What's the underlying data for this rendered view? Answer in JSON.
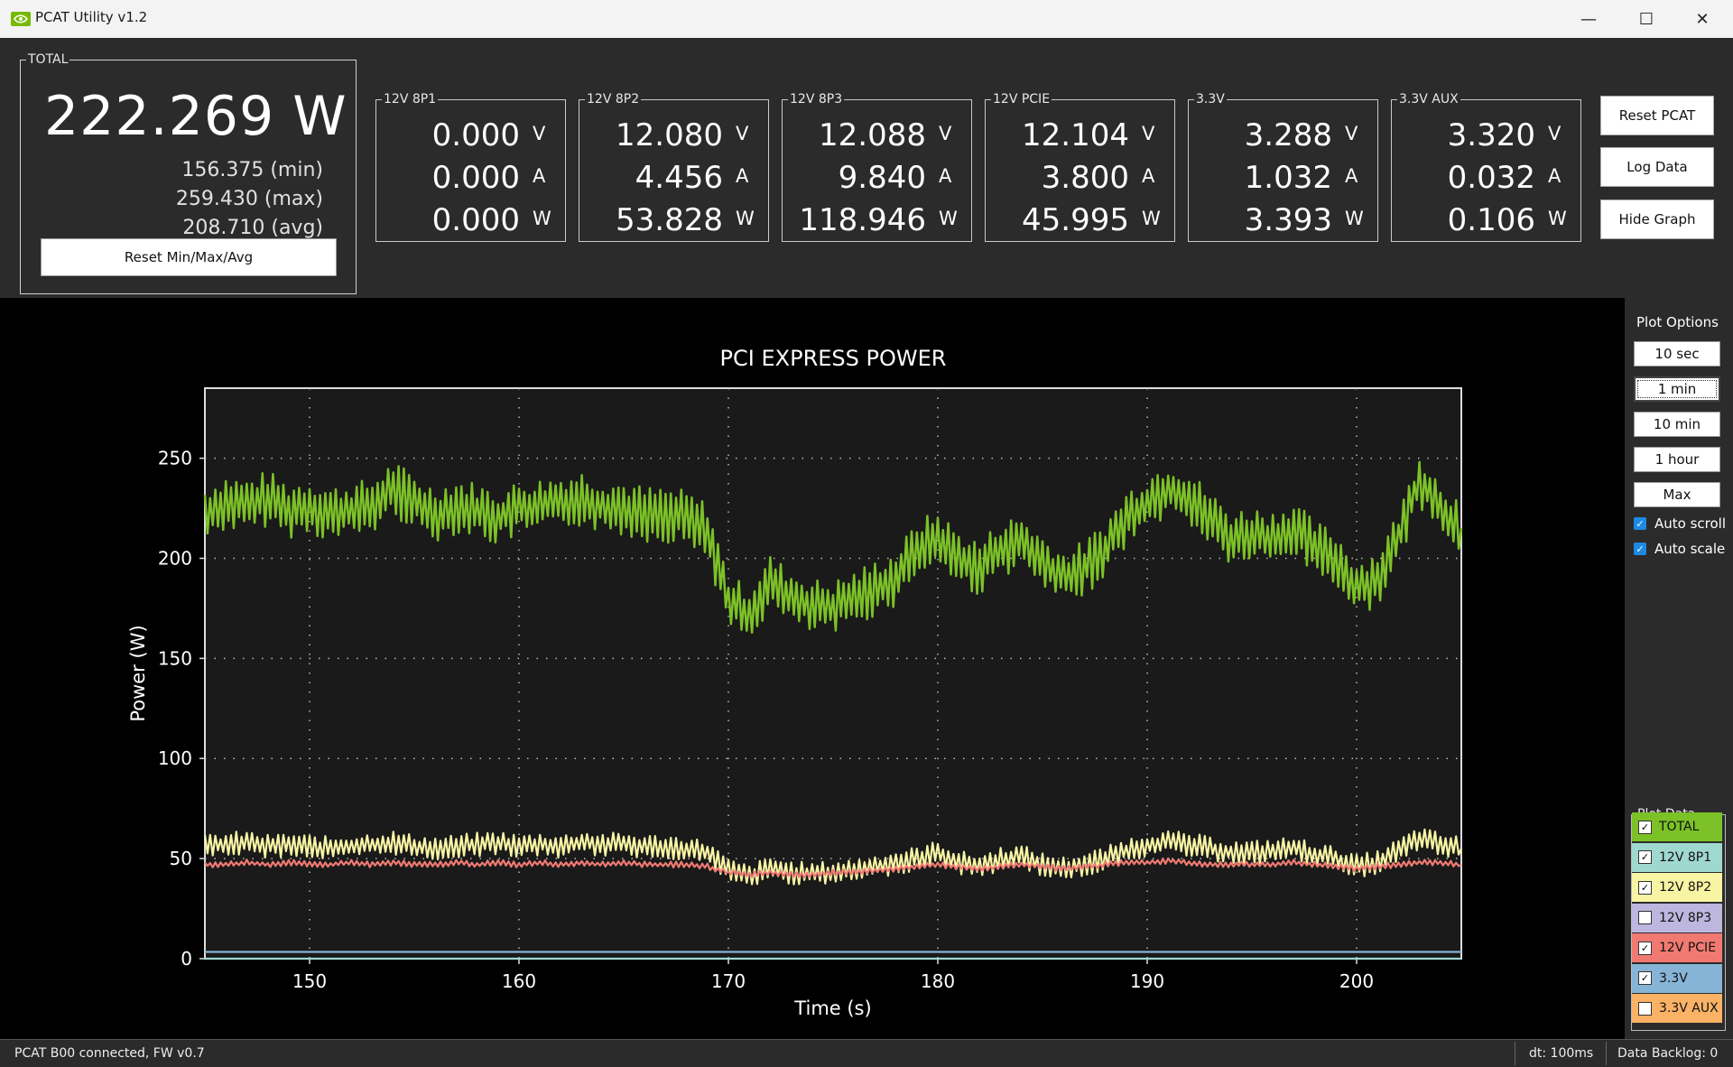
{
  "window": {
    "title": "PCAT Utility v1.2",
    "minimize": "—",
    "maximize": "☐",
    "close": "✕"
  },
  "total": {
    "legend": "TOTAL",
    "value": "222.269 W",
    "min": "156.375 (min)",
    "max": "259.430 (max)",
    "avg": "208.710 (avg)",
    "reset_label": "Reset Min/Max/Avg"
  },
  "rails": [
    {
      "name": "12V 8P1",
      "v": "0.000",
      "a": "0.000",
      "w": "0.000"
    },
    {
      "name": "12V 8P2",
      "v": "12.080",
      "a": "4.456",
      "w": "53.828"
    },
    {
      "name": "12V 8P3",
      "v": "12.088",
      "a": "9.840",
      "w": "118.946"
    },
    {
      "name": "12V PCIE",
      "v": "12.104",
      "a": "3.800",
      "w": "45.995"
    },
    {
      "name": "3.3V",
      "v": "3.288",
      "a": "1.032",
      "w": "3.393"
    },
    {
      "name": "3.3V AUX",
      "v": "3.320",
      "a": "0.032",
      "w": "0.106"
    }
  ],
  "units": {
    "v": "V",
    "a": "A",
    "w": "W"
  },
  "buttons": {
    "reset_pcat": "Reset PCAT",
    "log_data": "Log Data",
    "hide_graph": "Hide Graph"
  },
  "plot_options": {
    "title": "Plot Options",
    "ranges": [
      "10 sec",
      "1 min",
      "10 min",
      "1 hour",
      "Max"
    ],
    "selected": "1 min",
    "auto_scroll": "Auto scroll",
    "auto_scale": "Auto scale"
  },
  "plot_data": {
    "title": "Plot Data",
    "items": [
      {
        "label": "TOTAL",
        "checked": true,
        "color": "#7cc127"
      },
      {
        "label": "12V 8P1",
        "checked": true,
        "color": "#9fd8cf"
      },
      {
        "label": "12V 8P2",
        "checked": true,
        "color": "#f7f4a4"
      },
      {
        "label": "12V 8P3",
        "checked": false,
        "color": "#bdb6de"
      },
      {
        "label": "12V PCIE",
        "checked": true,
        "color": "#f07a72"
      },
      {
        "label": "3.3V",
        "checked": true,
        "color": "#86b4d6"
      },
      {
        "label": "3.3V AUX",
        "checked": false,
        "color": "#f9b266"
      }
    ]
  },
  "chart_data": {
    "type": "line",
    "title": "PCI EXPRESS POWER",
    "xlabel": "Time (s)",
    "ylabel": "Power (W)",
    "xlim": [
      145,
      205
    ],
    "ylim": [
      0,
      285
    ],
    "xticks": [
      150,
      160,
      170,
      180,
      190,
      200
    ],
    "yticks": [
      0,
      50,
      100,
      150,
      200,
      250
    ],
    "grid": true,
    "series": [
      {
        "name": "TOTAL",
        "color": "#7cc127",
        "x": [
          145,
          146,
          147,
          148,
          149,
          150,
          151,
          152,
          153,
          154,
          155,
          156,
          157,
          158,
          159,
          160,
          161,
          162,
          163,
          164,
          165,
          166,
          167,
          168,
          169,
          170,
          171,
          172,
          173,
          174,
          175,
          176,
          177,
          178,
          179,
          180,
          181,
          182,
          183,
          184,
          185,
          186,
          187,
          188,
          189,
          190,
          191,
          192,
          193,
          194,
          195,
          196,
          197,
          198,
          199,
          200,
          201,
          202,
          203,
          204,
          205
        ],
        "y": [
          222,
          228,
          226,
          230,
          224,
          226,
          222,
          224,
          226,
          235,
          228,
          222,
          226,
          224,
          220,
          225,
          226,
          228,
          230,
          226,
          225,
          222,
          222,
          220,
          214,
          178,
          172,
          188,
          180,
          176,
          175,
          180,
          185,
          190,
          205,
          210,
          200,
          195,
          205,
          208,
          198,
          190,
          195,
          205,
          220,
          228,
          235,
          230,
          220,
          210,
          212,
          210,
          215,
          205,
          200,
          185,
          190,
          210,
          240,
          225,
          215
        ]
      },
      {
        "name": "12V 8P2",
        "color": "#f7f4a4",
        "x": [
          145,
          146,
          147,
          148,
          149,
          150,
          151,
          152,
          153,
          154,
          155,
          156,
          157,
          158,
          159,
          160,
          161,
          162,
          163,
          164,
          165,
          166,
          167,
          168,
          169,
          170,
          171,
          172,
          173,
          174,
          175,
          176,
          177,
          178,
          179,
          180,
          181,
          182,
          183,
          184,
          185,
          186,
          187,
          188,
          189,
          190,
          191,
          192,
          193,
          194,
          195,
          196,
          197,
          198,
          199,
          200,
          201,
          202,
          203,
          204,
          205
        ],
        "y": [
          56,
          57,
          58,
          56,
          57,
          56,
          55,
          56,
          57,
          58,
          56,
          55,
          56,
          57,
          58,
          56,
          57,
          56,
          58,
          57,
          57,
          56,
          56,
          55,
          53,
          44,
          41,
          45,
          43,
          42,
          43,
          44,
          46,
          48,
          50,
          53,
          48,
          46,
          50,
          51,
          47,
          45,
          47,
          50,
          54,
          57,
          58,
          57,
          55,
          53,
          53,
          54,
          55,
          52,
          50,
          46,
          48,
          54,
          60,
          57,
          55
        ]
      },
      {
        "name": "12V PCIE",
        "color": "#f07a72",
        "x": [
          145,
          146,
          147,
          148,
          149,
          150,
          151,
          152,
          153,
          154,
          155,
          156,
          157,
          158,
          159,
          160,
          161,
          162,
          163,
          164,
          165,
          166,
          167,
          168,
          169,
          170,
          171,
          172,
          173,
          174,
          175,
          176,
          177,
          178,
          179,
          180,
          181,
          182,
          183,
          184,
          185,
          186,
          187,
          188,
          189,
          190,
          191,
          192,
          193,
          194,
          195,
          196,
          197,
          198,
          199,
          200,
          201,
          202,
          203,
          204,
          205
        ],
        "y": [
          47,
          47,
          48,
          47,
          48,
          47,
          47,
          48,
          47,
          48,
          47,
          47,
          48,
          47,
          48,
          47,
          48,
          47,
          48,
          47,
          48,
          47,
          47,
          47,
          46,
          43,
          42,
          43,
          42,
          42,
          43,
          43,
          44,
          45,
          46,
          47,
          46,
          45,
          46,
          47,
          46,
          45,
          46,
          47,
          48,
          48,
          49,
          48,
          47,
          47,
          47,
          47,
          48,
          47,
          46,
          45,
          46,
          47,
          48,
          48,
          47
        ]
      },
      {
        "name": "3.3V",
        "color": "#86b4d6",
        "x": [
          145,
          205
        ],
        "y": [
          3.4,
          3.4
        ]
      },
      {
        "name": "12V 8P1",
        "color": "#9fd8cf",
        "x": [
          145,
          205
        ],
        "y": [
          0,
          0
        ]
      }
    ]
  },
  "status": {
    "connection": "PCAT B00 connected, FW v0.7",
    "dt": "dt: 100ms",
    "backlog": "Data Backlog: 0"
  }
}
